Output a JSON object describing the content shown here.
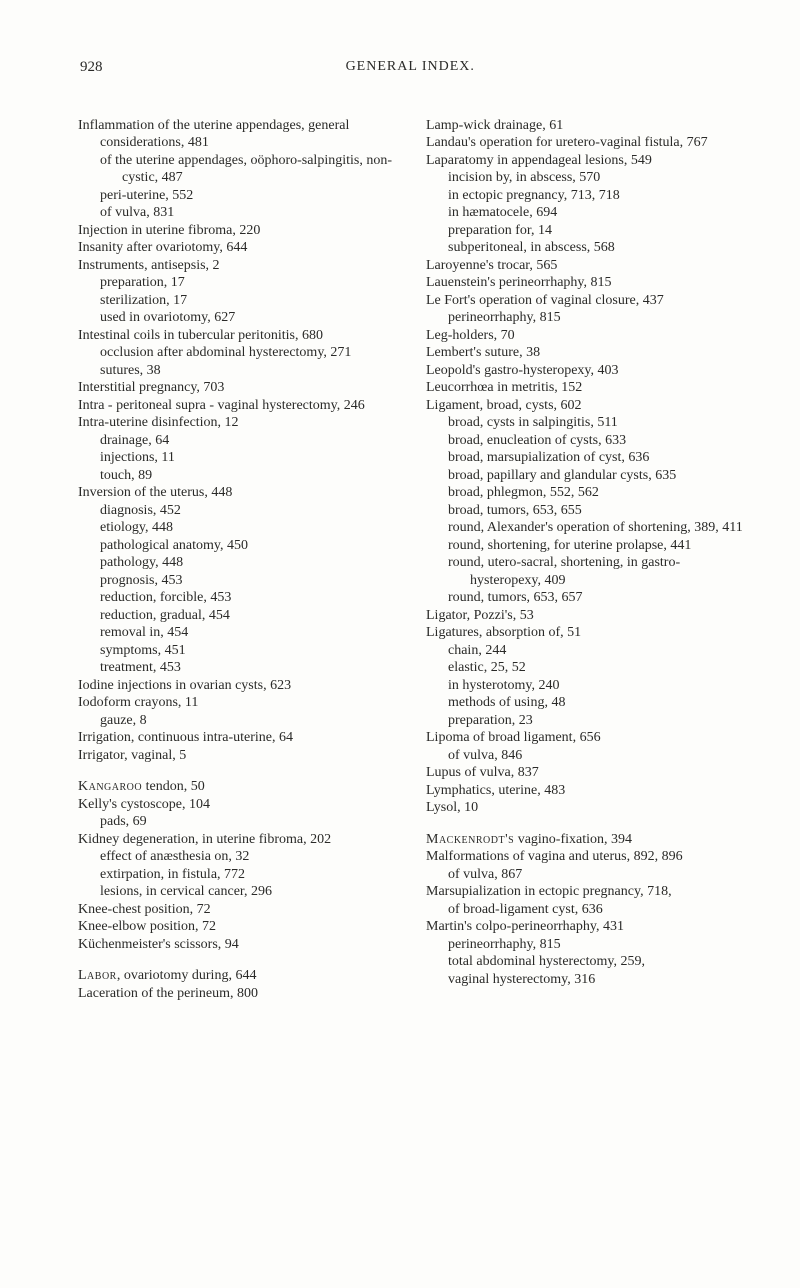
{
  "header": {
    "page_number": "928",
    "running_head": "GENERAL INDEX."
  },
  "left_col": [
    {
      "lvl": 1,
      "text": "Inflammation of the uterine appendages, general considerations, 481"
    },
    {
      "lvl": 2,
      "text": "of the uterine appendages, oöphoro-salpingitis, non-cystic, 487"
    },
    {
      "lvl": 2,
      "text": "peri-uterine, 552"
    },
    {
      "lvl": 2,
      "text": "of vulva, 831"
    },
    {
      "lvl": 1,
      "text": "Injection in uterine fibroma, 220"
    },
    {
      "lvl": 1,
      "text": "Insanity after ovariotomy, 644"
    },
    {
      "lvl": 1,
      "text": "Instruments, antisepsis, 2"
    },
    {
      "lvl": 2,
      "text": "preparation, 17"
    },
    {
      "lvl": 2,
      "text": "sterilization, 17"
    },
    {
      "lvl": 2,
      "text": "used in ovariotomy, 627"
    },
    {
      "lvl": 1,
      "text": "Intestinal coils in tubercular peritonitis, 680"
    },
    {
      "lvl": 2,
      "text": "occlusion after abdominal hysterectomy, 271"
    },
    {
      "lvl": 2,
      "text": "sutures, 38"
    },
    {
      "lvl": 1,
      "text": "Interstitial pregnancy, 703"
    },
    {
      "lvl": 1,
      "text": "Intra - peritoneal supra - vaginal hysterectomy, 246"
    },
    {
      "lvl": 1,
      "text": "Intra-uterine disinfection, 12"
    },
    {
      "lvl": 2,
      "text": "drainage, 64"
    },
    {
      "lvl": 2,
      "text": "injections, 11"
    },
    {
      "lvl": 2,
      "text": "touch, 89"
    },
    {
      "lvl": 1,
      "text": "Inversion of the uterus, 448"
    },
    {
      "lvl": 2,
      "text": "diagnosis, 452"
    },
    {
      "lvl": 2,
      "text": "etiology, 448"
    },
    {
      "lvl": 2,
      "text": "pathological anatomy, 450"
    },
    {
      "lvl": 2,
      "text": "pathology, 448"
    },
    {
      "lvl": 2,
      "text": "prognosis, 453"
    },
    {
      "lvl": 2,
      "text": "reduction, forcible, 453"
    },
    {
      "lvl": 2,
      "text": "reduction, gradual, 454"
    },
    {
      "lvl": 2,
      "text": "removal in, 454"
    },
    {
      "lvl": 2,
      "text": "symptoms, 451"
    },
    {
      "lvl": 2,
      "text": "treatment, 453"
    },
    {
      "lvl": 1,
      "text": "Iodine injections in ovarian cysts, 623"
    },
    {
      "lvl": 1,
      "text": "Iodoform crayons, 11"
    },
    {
      "lvl": 2,
      "text": "gauze, 8"
    },
    {
      "lvl": 1,
      "text": "Irrigation, continuous intra-uterine, 64"
    },
    {
      "lvl": 1,
      "text": "Irrigator, vaginal, 5"
    },
    {
      "lvl": 1,
      "gap": true,
      "sc": "Kangaroo",
      "rest": " tendon, 50"
    },
    {
      "lvl": 1,
      "text": "Kelly's cystoscope, 104"
    },
    {
      "lvl": 2,
      "text": "pads, 69"
    },
    {
      "lvl": 1,
      "text": "Kidney degeneration, in uterine fibroma, 202"
    },
    {
      "lvl": 2,
      "text": "effect of anæsthesia on, 32"
    },
    {
      "lvl": 2,
      "text": "extirpation, in fistula, 772"
    },
    {
      "lvl": 2,
      "text": "lesions, in cervical cancer, 296"
    },
    {
      "lvl": 1,
      "text": "Knee-chest position, 72"
    },
    {
      "lvl": 1,
      "text": "Knee-elbow position, 72"
    },
    {
      "lvl": 1,
      "text": "Küchenmeister's scissors, 94"
    },
    {
      "lvl": 1,
      "gap": true,
      "sc": "Labor",
      "rest": ", ovariotomy during, 644"
    },
    {
      "lvl": 1,
      "text": "Laceration of the perineum, 800"
    }
  ],
  "right_col": [
    {
      "lvl": 1,
      "text": "Lamp-wick drainage, 61"
    },
    {
      "lvl": 1,
      "text": "Landau's operation for uretero-vaginal fistula, 767"
    },
    {
      "lvl": 1,
      "text": "Laparatomy in appendageal lesions, 549"
    },
    {
      "lvl": 2,
      "text": "incision by, in abscess, 570"
    },
    {
      "lvl": 2,
      "text": "in ectopic pregnancy, 713, 718"
    },
    {
      "lvl": 2,
      "text": "in hæmatocele, 694"
    },
    {
      "lvl": 2,
      "text": "preparation for, 14"
    },
    {
      "lvl": 2,
      "text": "subperitoneal, in abscess, 568"
    },
    {
      "lvl": 1,
      "text": "Laroyenne's trocar, 565"
    },
    {
      "lvl": 1,
      "text": "Lauenstein's perineorrhaphy, 815"
    },
    {
      "lvl": 1,
      "text": "Le Fort's operation of vaginal closure, 437"
    },
    {
      "lvl": 2,
      "text": "perineorrhaphy, 815"
    },
    {
      "lvl": 1,
      "text": "Leg-holders, 70"
    },
    {
      "lvl": 1,
      "text": "Lembert's suture, 38"
    },
    {
      "lvl": 1,
      "text": "Leopold's gastro-hysteropexy, 403"
    },
    {
      "lvl": 1,
      "text": "Leucorrhœa in metritis, 152"
    },
    {
      "lvl": 1,
      "text": "Ligament, broad, cysts, 602"
    },
    {
      "lvl": 2,
      "text": "broad, cysts in salpingitis, 511"
    },
    {
      "lvl": 2,
      "text": "broad, enucleation of cysts, 633"
    },
    {
      "lvl": 2,
      "text": "broad, marsupialization of cyst, 636"
    },
    {
      "lvl": 2,
      "text": "broad, papillary and glandular cysts, 635"
    },
    {
      "lvl": 2,
      "text": "broad, phlegmon, 552, 562"
    },
    {
      "lvl": 2,
      "text": "broad, tumors, 653, 655"
    },
    {
      "lvl": 2,
      "text": "round, Alexander's operation of shortening, 389, 411"
    },
    {
      "lvl": 2,
      "text": "round, shortening, for uterine prolapse, 441"
    },
    {
      "lvl": 2,
      "text": "round, utero-sacral, shortening, in gastro-hysteropexy, 409"
    },
    {
      "lvl": 2,
      "text": "round, tumors, 653, 657"
    },
    {
      "lvl": 1,
      "text": "Ligator, Pozzi's, 53"
    },
    {
      "lvl": 1,
      "text": "Ligatures, absorption of, 51"
    },
    {
      "lvl": 2,
      "text": "chain, 244"
    },
    {
      "lvl": 2,
      "text": "elastic, 25, 52"
    },
    {
      "lvl": 2,
      "text": "in hysterotomy, 240"
    },
    {
      "lvl": 2,
      "text": "methods of using, 48"
    },
    {
      "lvl": 2,
      "text": "preparation, 23"
    },
    {
      "lvl": 1,
      "text": "Lipoma of broad ligament, 656"
    },
    {
      "lvl": 2,
      "text": "of vulva, 846"
    },
    {
      "lvl": 1,
      "text": "Lupus of vulva, 837"
    },
    {
      "lvl": 1,
      "text": "Lymphatics, uterine, 483"
    },
    {
      "lvl": 1,
      "text": "Lysol, 10"
    },
    {
      "lvl": 1,
      "gap": true,
      "sc": "Mackenrodt's",
      "rest": " vagino-fixation, 394"
    },
    {
      "lvl": 1,
      "text": "Malformations of vagina and uterus, 892, 896"
    },
    {
      "lvl": 2,
      "text": "of vulva, 867"
    },
    {
      "lvl": 1,
      "text": "Marsupialization in ectopic pregnancy, 718,"
    },
    {
      "lvl": 2,
      "text": "of broad-ligament cyst, 636"
    },
    {
      "lvl": 1,
      "text": "Martin's colpo-perineorrhaphy, 431"
    },
    {
      "lvl": 2,
      "text": "perineorrhaphy, 815"
    },
    {
      "lvl": 2,
      "text": "total abdominal hysterectomy, 259,"
    },
    {
      "lvl": 2,
      "text": "vaginal hysterectomy, 316"
    }
  ]
}
